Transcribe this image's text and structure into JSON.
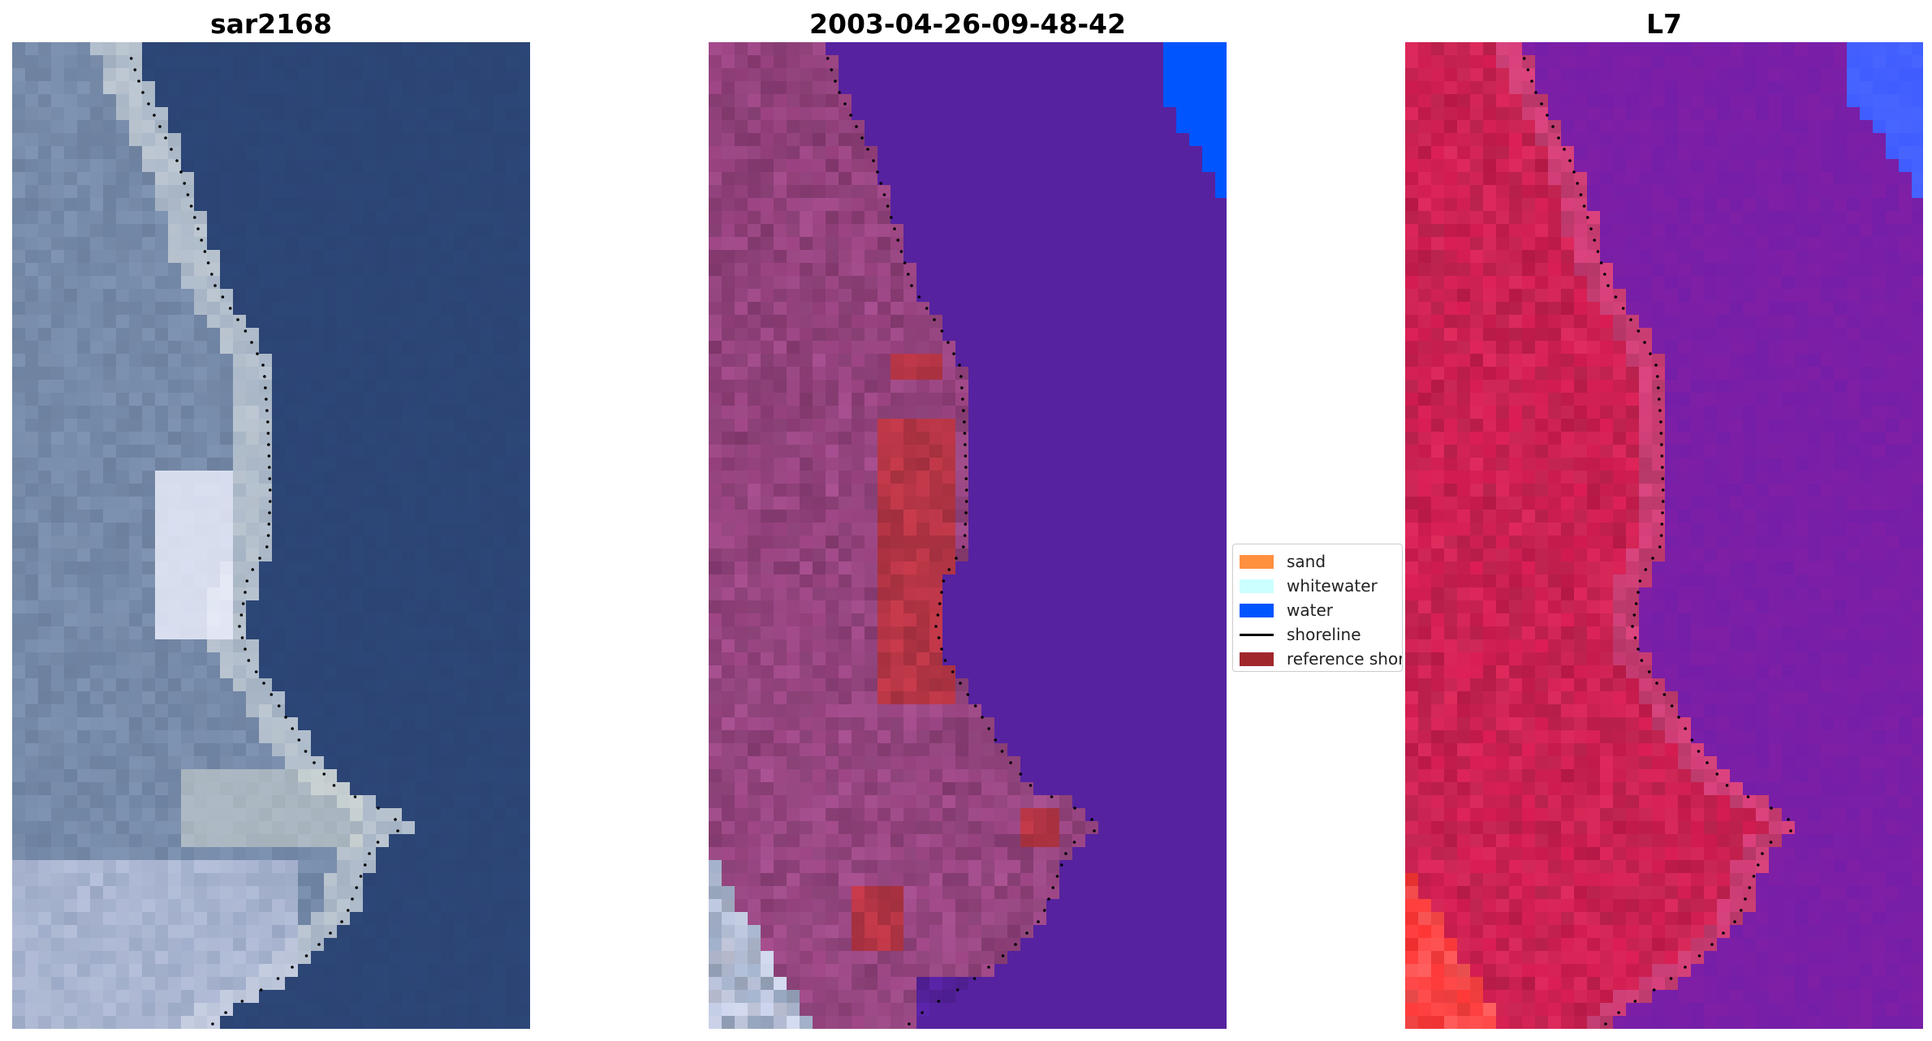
{
  "panels": [
    {
      "title": "sar2168",
      "kind": "rgb"
    },
    {
      "title": "2003-04-26-09-48-42",
      "kind": "classified"
    },
    {
      "title": "L7",
      "kind": "index"
    }
  ],
  "legend": {
    "items": [
      {
        "label": "sand",
        "color": "#ff9040",
        "kind": "patch"
      },
      {
        "label": "whitewater",
        "color": "#ccffff",
        "kind": "patch"
      },
      {
        "label": "water",
        "color": "#0055ff",
        "kind": "patch"
      },
      {
        "label": "shoreline",
        "color": "#000000",
        "kind": "line"
      },
      {
        "label": "reference shoreline",
        "color": "#a0282d",
        "kind": "patch"
      }
    ]
  },
  "colors": {
    "rgb_water": "#2c4677",
    "rgb_land": "#7f93b2",
    "rgb_bright": "#f0f2ff",
    "class_water": "#5622a0",
    "class_land": "#8b3a73",
    "class_reference": "#b53545",
    "index_land": "#c81a4c",
    "index_water": "#7f1fa5",
    "index_bright_water": "#3f5cff"
  },
  "icons": [
    "shoreline-dotted-line"
  ]
}
